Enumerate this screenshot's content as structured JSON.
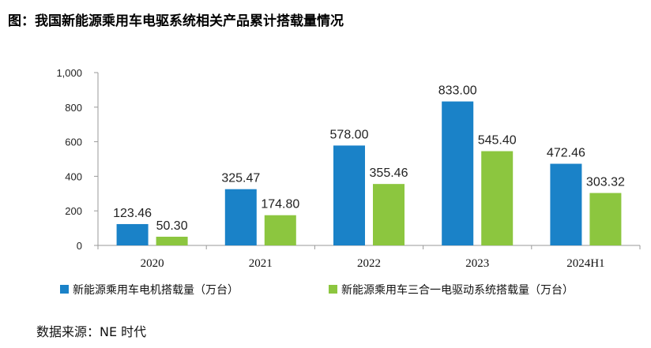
{
  "title": "图：我国新能源乘用车电驱系统相关产品累计搭载量情况",
  "source": "数据来源：NE 时代",
  "chart_data": {
    "type": "bar",
    "categories": [
      "2020",
      "2021",
      "2022",
      "2023",
      "2024H1"
    ],
    "series": [
      {
        "name": "新能源乘用车电机搭载量（万台）",
        "values": [
          123.46,
          325.47,
          578.0,
          833.0,
          472.46
        ],
        "value_labels": [
          "123.46",
          "325.47",
          "578.00",
          "833.00",
          "472.46"
        ],
        "color": "#1a82c8"
      },
      {
        "name": "新能源乘用车三合一电驱动系统搭载量（万台）",
        "values": [
          50.3,
          174.8,
          355.46,
          545.4,
          303.32
        ],
        "value_labels": [
          "50.30",
          "174.80",
          "355.46",
          "545.40",
          "303.32"
        ],
        "color": "#8cc63f"
      }
    ],
    "ylim": [
      0,
      1000
    ],
    "yticks": [
      0,
      200,
      400,
      600,
      800,
      1000
    ],
    "ytick_labels": [
      "0",
      "200",
      "400",
      "600",
      "800",
      "1,000"
    ],
    "xlabel": "",
    "ylabel": "",
    "grid": false,
    "legend_position": "bottom"
  }
}
